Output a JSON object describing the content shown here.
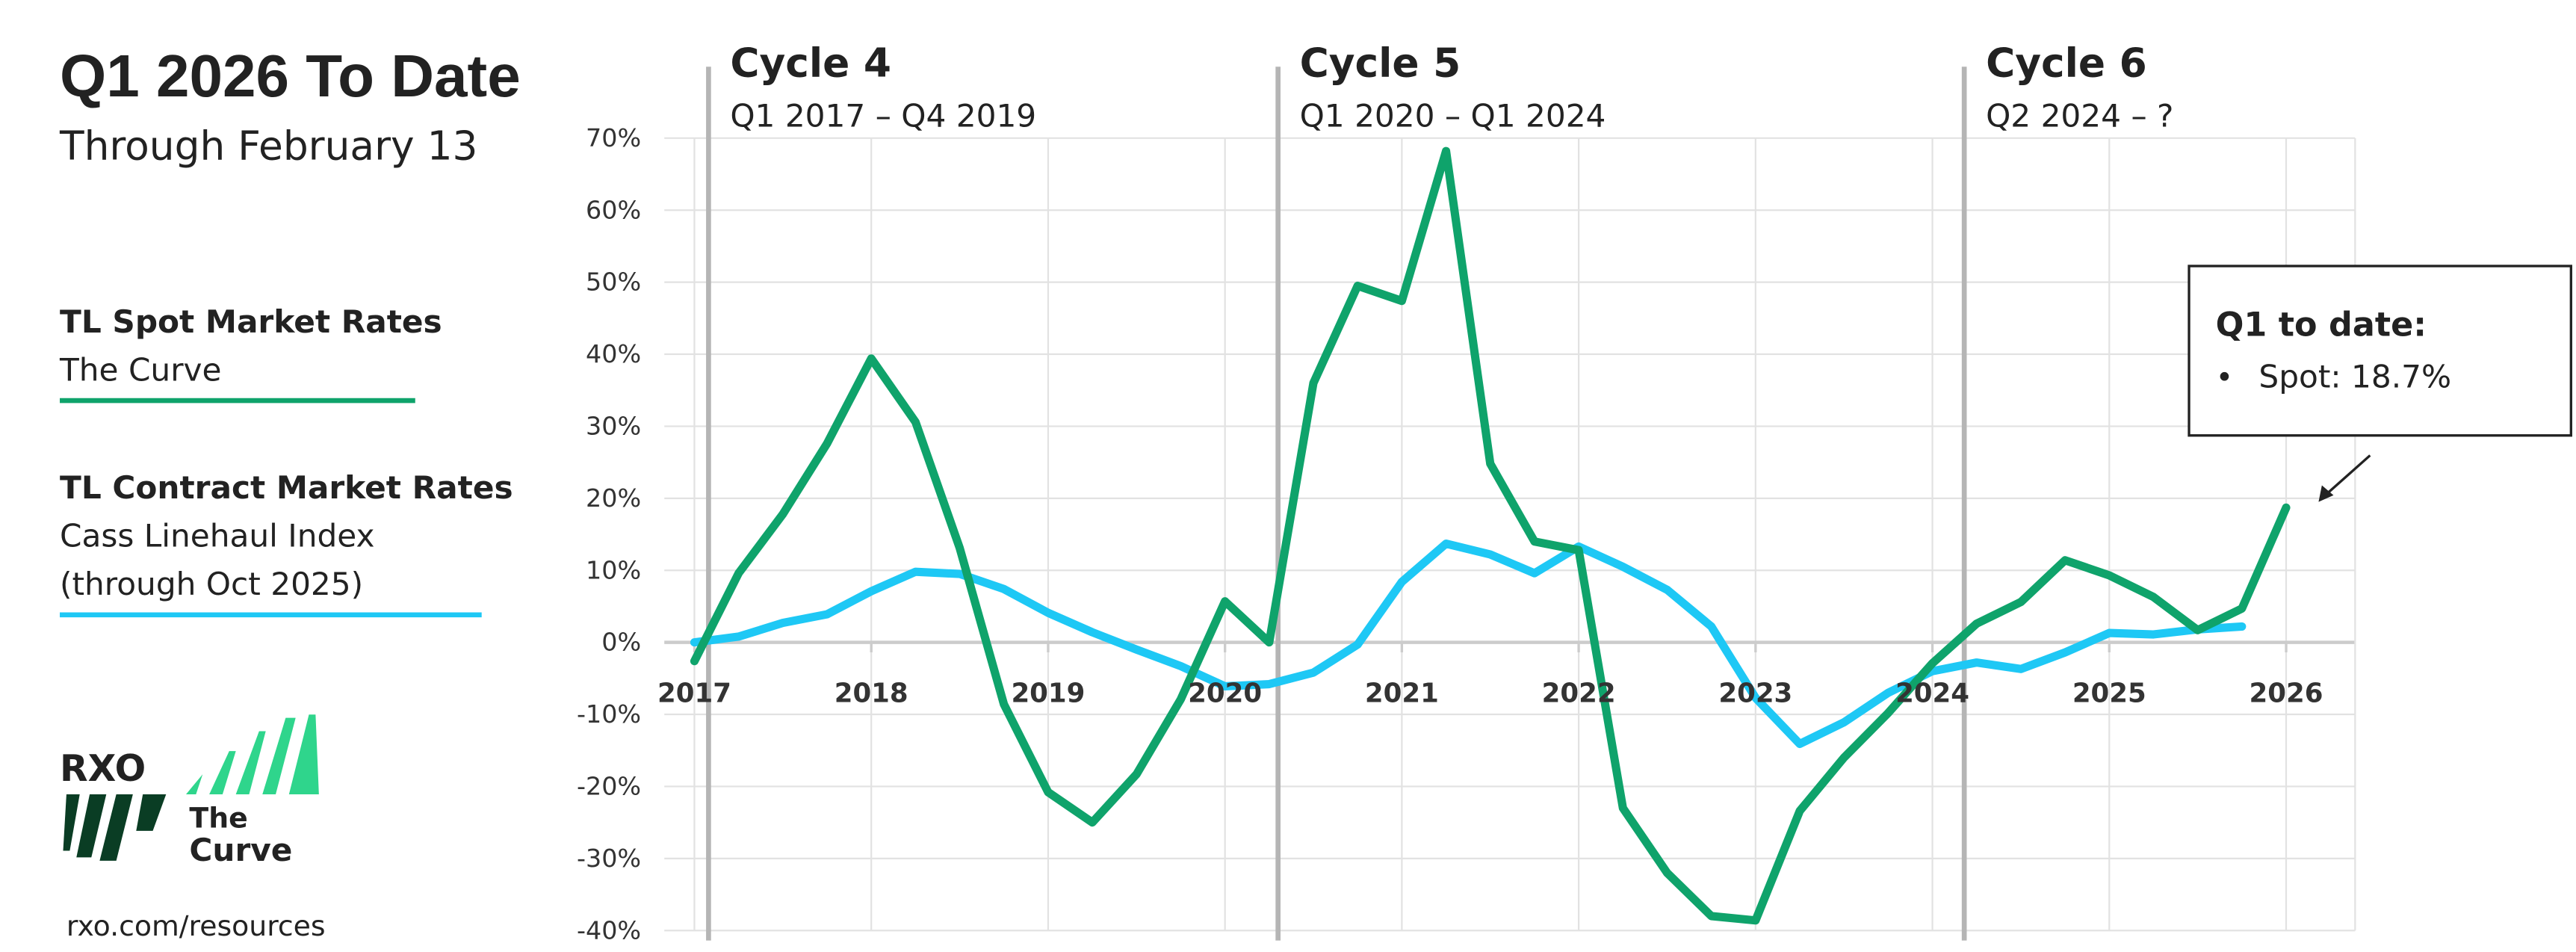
{
  "chart_data": {
    "type": "line",
    "title": "Q1 2026 To Date",
    "subtitle": "Through February 13",
    "x": [
      2017,
      2017.25,
      2017.5,
      2017.75,
      2018,
      2018.25,
      2018.5,
      2018.75,
      2019,
      2019.25,
      2019.5,
      2019.75,
      2020,
      2020.25,
      2020.5,
      2020.75,
      2021,
      2021.25,
      2021.5,
      2021.75,
      2022,
      2022.25,
      2022.5,
      2022.75,
      2023,
      2023.25,
      2023.5,
      2023.75,
      2024,
      2024.25,
      2024.5,
      2024.75,
      2025,
      2025.25,
      2025.5,
      2025.75,
      2026
    ],
    "series": [
      {
        "name": "TL Spot Market Rates",
        "description": [
          "The Curve"
        ],
        "color": "#0fa36b",
        "values": [
          -2.6,
          9.6,
          17.8,
          27.6,
          39.4,
          30.6,
          13.1,
          -8.6,
          -20.8,
          -25,
          -18.3,
          -7.9,
          5.7,
          0,
          36,
          49.5,
          47.4,
          68.2,
          24.8,
          14,
          12.8,
          -23,
          -32,
          -38,
          -38.6,
          -23.4,
          -16,
          -9.8,
          -2.9,
          2.6,
          5.6,
          11.4,
          9.3,
          6.3,
          1.7,
          4.7,
          18.7
        ]
      },
      {
        "name": "TL Contract Market Rates",
        "description": [
          "Cass Linehaul Index",
          "(through Oct 2025)"
        ],
        "color": "#1ec8f5",
        "values": [
          0,
          0.8,
          2.7,
          3.9,
          7.1,
          9.8,
          9.5,
          7.4,
          4.1,
          1.4,
          -1,
          -3.3,
          -6.1,
          -5.8,
          -4.2,
          -0.3,
          8.4,
          13.7,
          12.2,
          9.6,
          13.3,
          10.5,
          7.3,
          2.2,
          -7.7,
          -14.1,
          -11.1,
          -7,
          -4,
          -2.8,
          -3.7,
          -1.4,
          1.3,
          1.1,
          1.8,
          2.2,
          null
        ]
      }
    ],
    "xlim": [
      2016.83,
      2026.39
    ],
    "xticks": [
      2017,
      2018,
      2019,
      2020,
      2021,
      2022,
      2023,
      2024,
      2025,
      2026
    ],
    "ylim": [
      -40,
      70
    ],
    "yticks": [
      {
        "value": -40,
        "label": "-40%"
      },
      {
        "value": -30,
        "label": "-30%"
      },
      {
        "value": -20,
        "label": "-20%"
      },
      {
        "value": -10,
        "label": "-10%"
      },
      {
        "value": 0,
        "label": "0%"
      },
      {
        "value": 10,
        "label": "10%"
      },
      {
        "value": 20,
        "label": "20%"
      },
      {
        "value": 30,
        "label": "30%"
      },
      {
        "value": 40,
        "label": "40%"
      },
      {
        "value": 50,
        "label": "50%"
      },
      {
        "value": 60,
        "label": "60%"
      },
      {
        "value": 70,
        "label": "70%"
      }
    ],
    "grid": true,
    "cycles": [
      {
        "title": "Cycle 4",
        "range": "Q1 2017 – Q4 2019",
        "x": 2017.08
      },
      {
        "title": "Cycle 5",
        "range": "Q1 2020 – Q1 2024",
        "x": 2020.3
      },
      {
        "title": "Cycle 6",
        "range": "Q2 2024 – ?",
        "x": 2024.18
      }
    ],
    "annotation": {
      "title": "Q1 to date:",
      "bullet": "•",
      "text": "Spot: 18.7%"
    },
    "logo": {
      "brand": "RXO",
      "line1": "The",
      "line2": "Curve"
    },
    "footer": "rxo.com/resources"
  }
}
